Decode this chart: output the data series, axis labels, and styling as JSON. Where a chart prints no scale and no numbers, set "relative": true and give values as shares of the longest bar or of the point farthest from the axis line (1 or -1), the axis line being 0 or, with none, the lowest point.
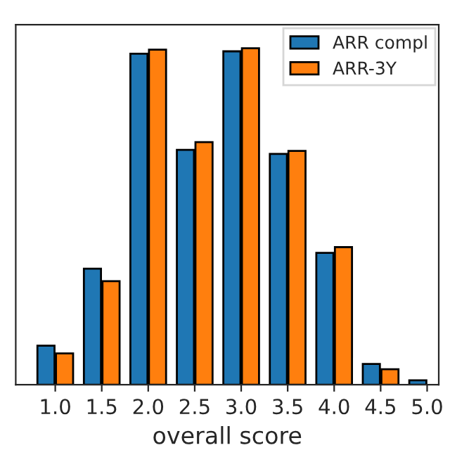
{
  "chart_data": {
    "type": "bar",
    "xlabel": "overall score",
    "relative": true,
    "categories": [
      "1.0",
      "1.5",
      "2.0",
      "2.5",
      "3.0",
      "3.5",
      "4.0",
      "4.5",
      "5.0"
    ],
    "series": [
      {
        "name": "ARR compl",
        "color": "#1f77b4",
        "values": [
          0.116,
          0.345,
          0.984,
          0.698,
          0.991,
          0.686,
          0.392,
          0.062,
          0.013
        ]
      },
      {
        "name": "ARR-3Y",
        "color": "#ff7f0e",
        "values": [
          0.093,
          0.308,
          0.996,
          0.721,
          1,
          0.695,
          0.409,
          0.046,
          null
        ]
      }
    ],
    "legend": "top right",
    "grid": false
  }
}
